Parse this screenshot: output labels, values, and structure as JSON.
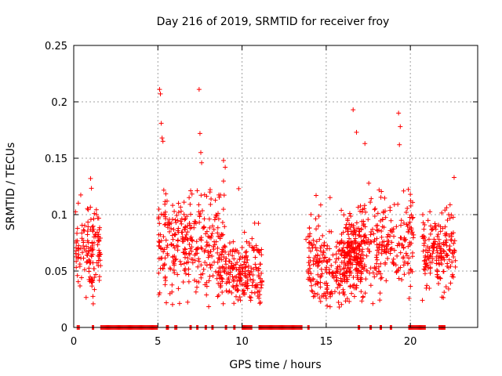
{
  "chart_data": {
    "type": "scatter",
    "title": "Day 216 of 2019, SRMTID for receiver froy",
    "xlabel": "GPS time / hours",
    "ylabel": "SRMTID / TECUs",
    "xlim": [
      0,
      24
    ],
    "ylim": [
      0,
      0.25
    ],
    "x_ticks": [
      0,
      5,
      10,
      15,
      20
    ],
    "x_tick_labels": [
      "0",
      "5",
      "10",
      "15",
      "20"
    ],
    "y_ticks": [
      0,
      0.05,
      0.1,
      0.15,
      0.2,
      0.25
    ],
    "y_tick_labels": [
      "0",
      "0.05",
      "0.1",
      "0.15",
      "0.2",
      "0.25"
    ],
    "grid": true,
    "marker": "+",
    "color": "#ff0000",
    "series": [
      {
        "name": "SRMTID",
        "clusters": [
          {
            "x_range": [
              0.1,
              1.6
            ],
            "y_mean": 0.072,
            "y_spread": 0.018,
            "count": 140
          },
          {
            "x_range": [
              5.0,
              9.0
            ],
            "y_mean": 0.075,
            "y_spread": 0.022,
            "count": 320
          },
          {
            "x_range": [
              8.5,
              11.2
            ],
            "y_mean": 0.05,
            "y_spread": 0.016,
            "count": 220
          },
          {
            "x_range": [
              13.9,
              17.2
            ],
            "y_mean": 0.055,
            "y_spread": 0.018,
            "count": 300
          },
          {
            "x_range": [
              16.0,
              20.2
            ],
            "y_mean": 0.072,
            "y_spread": 0.02,
            "count": 320
          },
          {
            "x_range": [
              20.7,
              22.7
            ],
            "y_mean": 0.068,
            "y_spread": 0.017,
            "count": 180
          }
        ],
        "outliers": [
          [
            1.0,
            0.132
          ],
          [
            5.1,
            0.211
          ],
          [
            5.15,
            0.207
          ],
          [
            5.2,
            0.181
          ],
          [
            5.25,
            0.168
          ],
          [
            5.3,
            0.165
          ],
          [
            7.45,
            0.211
          ],
          [
            7.5,
            0.172
          ],
          [
            7.55,
            0.155
          ],
          [
            7.6,
            0.146
          ],
          [
            8.9,
            0.148
          ],
          [
            9.0,
            0.142
          ],
          [
            16.6,
            0.193
          ],
          [
            16.8,
            0.173
          ],
          [
            17.3,
            0.163
          ],
          [
            19.3,
            0.19
          ],
          [
            19.4,
            0.178
          ],
          [
            19.35,
            0.162
          ],
          [
            22.6,
            0.133
          ],
          [
            9.8,
            0.123
          ],
          [
            14.4,
            0.117
          ],
          [
            14.0,
            0.088
          ],
          [
            13.8,
            0.078
          ],
          [
            20.0,
            0.118
          ],
          [
            19.6,
            0.121
          ]
        ],
        "zero_runs": [
          [
            0.2,
            0.35
          ],
          [
            1.1,
            1.2
          ],
          [
            1.6,
            5.0
          ],
          [
            5.5,
            5.65
          ],
          [
            6.0,
            6.15
          ],
          [
            6.9,
            7.0
          ],
          [
            7.3,
            7.4
          ],
          [
            7.8,
            7.9
          ],
          [
            8.2,
            8.3
          ],
          [
            9.0,
            9.1
          ],
          [
            9.5,
            9.6
          ],
          [
            10.0,
            10.6
          ],
          [
            11.0,
            13.6
          ],
          [
            13.9,
            14.0
          ],
          [
            16.9,
            17.0
          ],
          [
            17.6,
            17.7
          ],
          [
            18.2,
            18.3
          ],
          [
            18.8,
            18.9
          ],
          [
            19.9,
            20.9
          ],
          [
            21.7,
            22.1
          ]
        ]
      }
    ]
  }
}
